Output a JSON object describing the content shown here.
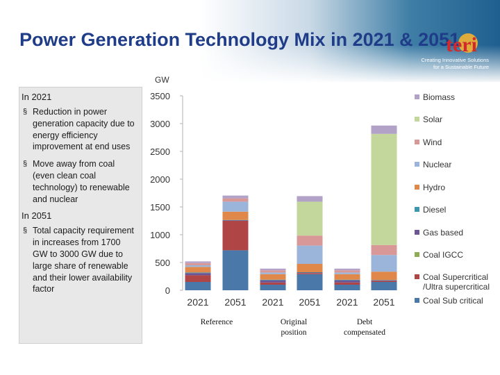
{
  "slide": {
    "title": "Power Generation Technology Mix in 2021 & 2051",
    "logo_text": "teri",
    "logo_tagline_line1": "Creating Innovative Solutions",
    "logo_tagline_line2": "for a Sustainable Future"
  },
  "sidebar": {
    "heading_2021": "In 2021",
    "items_2021": [
      "Reduction in power generation capacity due to energy efficiency improvement at end uses",
      "Move away from coal (even clean coal technology) to renewable and nuclear"
    ],
    "heading_2051": "In 2051",
    "items_2051": [
      "Total capacity requirement in increases from 1700 GW to 3000 GW due to large share of renewable and their lower availability factor"
    ],
    "bullet": "§"
  },
  "colors": {
    "title": "#1f3c88",
    "Coal Sub critical": "#4a78a8",
    "Coal Supercritical /Ultra supercritical": "#b04545",
    "Coal IGCC": "#8fab55",
    "Gas based": "#6b5594",
    "Diesel": "#3b97ad",
    "Hydro": "#e0884a",
    "Nuclear": "#9ab5d9",
    "Wind": "#d99898",
    "Solar": "#c3d69b",
    "Biomass": "#b2a2c7"
  },
  "chart_data": {
    "type": "bar",
    "stacked": true,
    "unit": "GW",
    "ylim": [
      0,
      3500
    ],
    "yticks": [
      "3500",
      "3000",
      "2500",
      "2000",
      "1500",
      "1000",
      "500",
      "0"
    ],
    "categories": [
      "2021",
      "2051",
      "2021",
      "2051",
      "2021",
      "2051"
    ],
    "groups": [
      "Reference",
      "Original position",
      "Debt compensated"
    ],
    "series": [
      {
        "name": "Coal Sub critical",
        "values": [
          150,
          720,
          100,
          290,
          100,
          150
        ]
      },
      {
        "name": "Coal Supercritical /Ultra supercritical",
        "values": [
          120,
          530,
          40,
          20,
          40,
          20
        ]
      },
      {
        "name": "Coal IGCC",
        "values": [
          0,
          0,
          0,
          0,
          0,
          0
        ]
      },
      {
        "name": "Gas based",
        "values": [
          40,
          10,
          40,
          10,
          40,
          10
        ]
      },
      {
        "name": "Diesel",
        "values": [
          10,
          5,
          10,
          5,
          10,
          5
        ]
      },
      {
        "name": "Hydro",
        "values": [
          100,
          150,
          100,
          150,
          100,
          150
        ]
      },
      {
        "name": "Nuclear",
        "values": [
          30,
          180,
          30,
          330,
          30,
          300
        ]
      },
      {
        "name": "Wind",
        "values": [
          40,
          60,
          40,
          180,
          40,
          180
        ]
      },
      {
        "name": "Solar",
        "values": [
          0,
          0,
          0,
          610,
          0,
          2000
        ]
      },
      {
        "name": "Biomass",
        "values": [
          30,
          50,
          30,
          100,
          30,
          150
        ]
      }
    ],
    "legend_order": [
      "Biomass",
      "Solar",
      "Wind",
      "Nuclear",
      "Hydro",
      "Diesel",
      "Gas based",
      "Coal IGCC",
      "Coal Supercritical /Ultra supercritical",
      "Coal Sub critical"
    ],
    "legend_labels": [
      "Biomass",
      "Solar",
      "Wind",
      "Nuclear",
      "Hydro",
      "Diesel",
      "Gas based",
      "Coal IGCC",
      "Coal Supercritical",
      "/Ultra supercritical",
      "Coal Sub critical"
    ],
    "legend_position": "right"
  }
}
